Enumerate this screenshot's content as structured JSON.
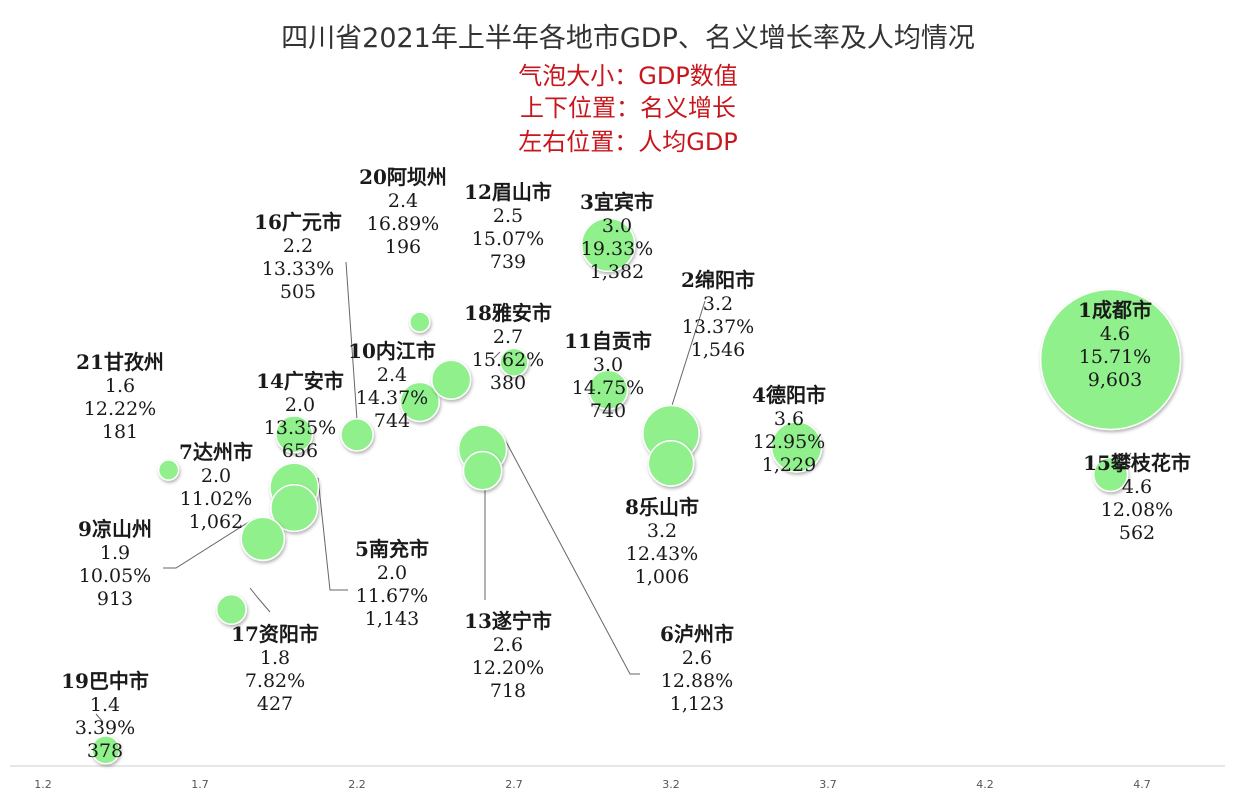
{
  "chart_data": {
    "type": "bubble",
    "title": "四川省2021年上半年各地市GDP、名义增长率及人均情况",
    "subtitles": [
      "气泡大小：GDP数值",
      "上下位置：名义增长",
      "左右位置：人均GDP"
    ],
    "xticks": [
      "1.2",
      "1.7",
      "2.2",
      "2.7",
      "3.2",
      "3.7",
      "4.2",
      "4.7"
    ],
    "xlim": [
      1.2,
      4.95
    ],
    "ylim": [
      2.5,
      21.5
    ],
    "bubble_color": "#8ff08c",
    "points": [
      {
        "name": "1成都市",
        "x": "4.6",
        "y": "15.71%",
        "size": "9,603"
      },
      {
        "name": "2绵阳市",
        "x": "3.2",
        "y": "13.37%",
        "size": "1,546"
      },
      {
        "name": "3宜宾市",
        "x": "3.0",
        "y": "19.33%",
        "size": "1,382"
      },
      {
        "name": "4德阳市",
        "x": "3.6",
        "y": "12.95%",
        "size": "1,229"
      },
      {
        "name": "5南充市",
        "x": "2.0",
        "y": "11.67%",
        "size": "1,143"
      },
      {
        "name": "6泸州市",
        "x": "2.6",
        "y": "12.88%",
        "size": "1,123"
      },
      {
        "name": "7达州市",
        "x": "2.0",
        "y": "11.02%",
        "size": "1,062"
      },
      {
        "name": "8乐山市",
        "x": "3.2",
        "y": "12.43%",
        "size": "1,006"
      },
      {
        "name": "9凉山州",
        "x": "1.9",
        "y": "10.05%",
        "size": "913"
      },
      {
        "name": "10内江市",
        "x": "2.4",
        "y": "14.37%",
        "size": "744"
      },
      {
        "name": "11自贡市",
        "x": "3.0",
        "y": "14.75%",
        "size": "740"
      },
      {
        "name": "12眉山市",
        "x": "2.5",
        "y": "15.07%",
        "size": "739"
      },
      {
        "name": "13遂宁市",
        "x": "2.6",
        "y": "12.20%",
        "size": "718"
      },
      {
        "name": "14广安市",
        "x": "2.0",
        "y": "13.35%",
        "size": "656"
      },
      {
        "name": "15攀枝花市",
        "x": "4.6",
        "y": "12.08%",
        "size": "562"
      },
      {
        "name": "16广元市",
        "x": "2.2",
        "y": "13.33%",
        "size": "505"
      },
      {
        "name": "17资阳市",
        "x": "1.8",
        "y": "7.82%",
        "size": "427"
      },
      {
        "name": "18雅安市",
        "x": "2.7",
        "y": "15.62%",
        "size": "380"
      },
      {
        "name": "19巴中市",
        "x": "1.4",
        "y": "3.39%",
        "size": "378"
      },
      {
        "name": "20阿坝州",
        "x": "2.4",
        "y": "16.89%",
        "size": "196"
      },
      {
        "name": "21甘孜州",
        "x": "1.6",
        "y": "12.22%",
        "size": "181"
      }
    ]
  }
}
